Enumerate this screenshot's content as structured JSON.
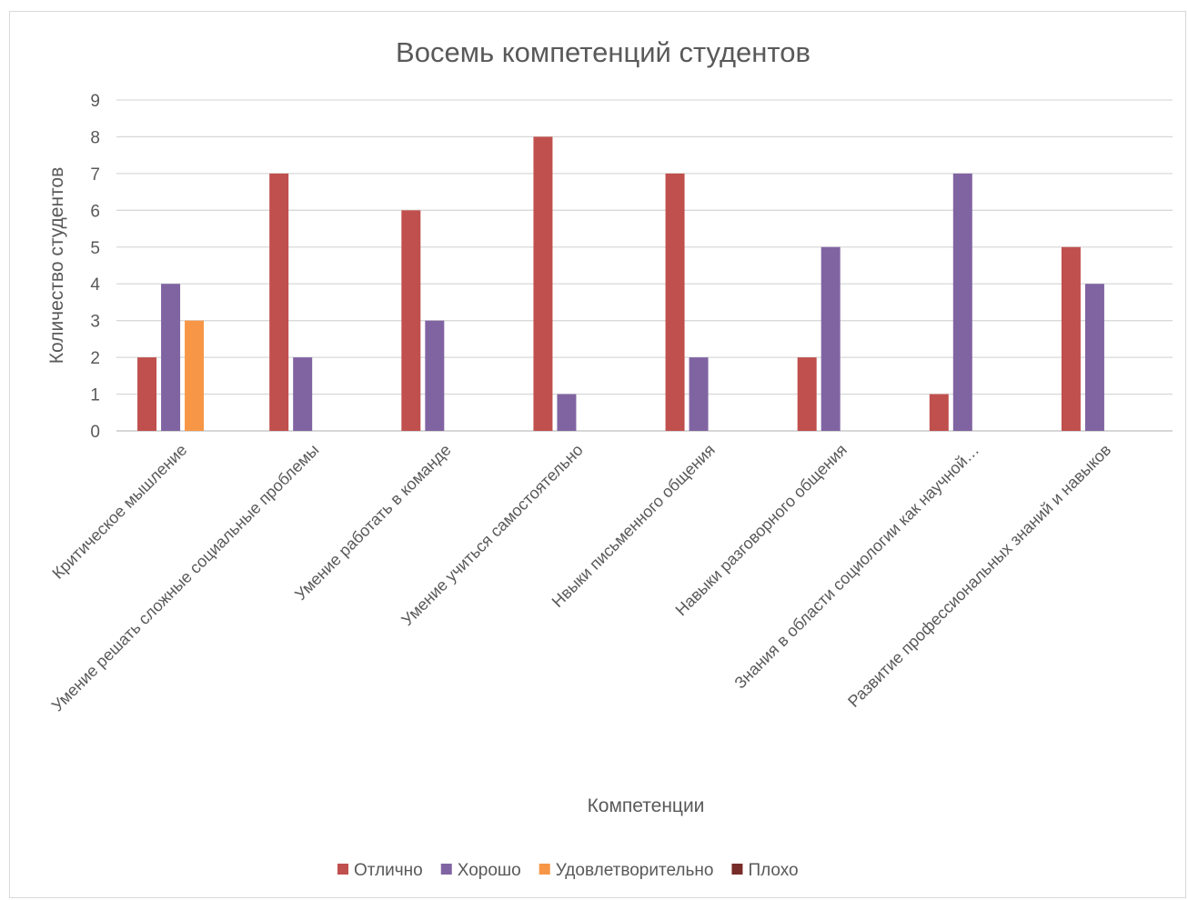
{
  "chart_data": {
    "type": "bar",
    "title": "Восемь компетенций студентов",
    "xlabel": "Компетенции",
    "ylabel": "Количество студентов",
    "ylim": [
      0,
      9
    ],
    "yticks": [
      0,
      1,
      2,
      3,
      4,
      5,
      6,
      7,
      8,
      9
    ],
    "grid": true,
    "legend_position": "bottom",
    "categories": [
      "Критическое мышление",
      "Умение решать сложные социальные проблемы",
      "Умение работать в команде",
      "Умение учиться самостоятельно",
      "Нвыки письменного общения",
      "Навыки разговорного общения",
      "Знания в области социологии как научной…",
      "Развитие профессиональных знаний и навыков"
    ],
    "series": [
      {
        "name": "Отлично",
        "color": "#c0504d",
        "values": [
          2,
          7,
          6,
          8,
          7,
          2,
          1,
          5
        ]
      },
      {
        "name": "Хорошо",
        "color": "#8064a2",
        "values": [
          4,
          2,
          3,
          1,
          2,
          5,
          7,
          4
        ]
      },
      {
        "name": "Удовлетворительно",
        "color": "#f79646",
        "values": [
          3,
          0,
          0,
          0,
          0,
          0,
          0,
          0
        ]
      },
      {
        "name": "Плохо",
        "color": "#772c2a",
        "values": [
          0,
          0,
          0,
          0,
          0,
          0,
          0,
          0
        ]
      }
    ]
  }
}
